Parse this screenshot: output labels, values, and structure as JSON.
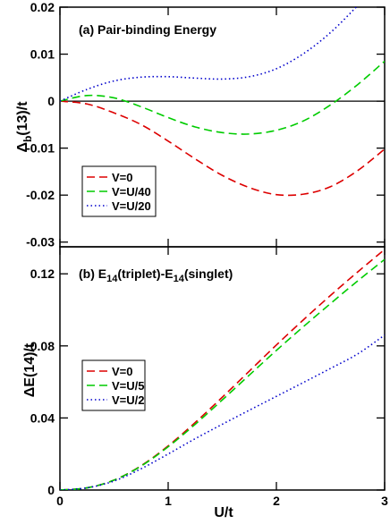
{
  "chart_data": [
    {
      "type": "line",
      "panel_title": "(a) Pair-binding Energy",
      "ylabel_main": "Δ",
      "ylabel_sub": "b",
      "ylabel_tail": "(13)/t",
      "xlabel": "",
      "xlim": [
        0,
        3
      ],
      "ylim": [
        -0.031,
        0.02
      ],
      "yticks": [
        0.02,
        0.01,
        0,
        -0.01,
        -0.02,
        -0.03
      ],
      "ytick_labels": [
        "0.02",
        "0.01",
        "0",
        "-0.01",
        "-0.02",
        "-0.03"
      ],
      "zero_line": true,
      "legend_position": "bottom-left",
      "series": [
        {
          "name": "V=0",
          "color": "#dd0000",
          "dash": "dashed",
          "x": [
            0,
            0.25,
            0.5,
            0.75,
            1.0,
            1.25,
            1.5,
            1.75,
            2.0,
            2.25,
            2.5,
            2.75,
            3.0
          ],
          "y": [
            0,
            -0.0006,
            -0.0025,
            -0.005,
            -0.0085,
            -0.0123,
            -0.0158,
            -0.0184,
            -0.0199,
            -0.0198,
            -0.0182,
            -0.0148,
            -0.0102
          ]
        },
        {
          "name": "V=U/40",
          "color": "#00cc00",
          "dash": "dashed",
          "x": [
            0,
            0.25,
            0.5,
            0.75,
            1.0,
            1.25,
            1.5,
            1.75,
            2.0,
            2.25,
            2.5,
            2.75,
            3.0
          ],
          "y": [
            0,
            0.0012,
            0.0007,
            -0.0012,
            -0.0035,
            -0.0055,
            -0.0067,
            -0.007,
            -0.0062,
            -0.0042,
            -0.0008,
            0.0035,
            0.0085
          ]
        },
        {
          "name": "V=U/20",
          "color": "#0000cc",
          "dash": "dotted",
          "x": [
            0,
            0.25,
            0.5,
            0.75,
            1.0,
            1.25,
            1.5,
            1.75,
            2.0,
            2.25,
            2.5,
            2.75,
            3.0
          ],
          "y": [
            0,
            0.0025,
            0.0043,
            0.0051,
            0.0052,
            0.0049,
            0.0047,
            0.0052,
            0.0069,
            0.0101,
            0.0146,
            0.0203,
            0.0262
          ]
        }
      ]
    },
    {
      "type": "line",
      "panel_title_prefix": "(b) E",
      "panel_title_sub1": "14",
      "panel_title_mid": "(triplet)-E",
      "panel_title_sub2": "14",
      "panel_title_tail": "(singlet)",
      "ylabel": "ΔE(14)/t",
      "xlabel": "U/t",
      "xlim": [
        0,
        3
      ],
      "ylim": [
        0,
        0.135
      ],
      "xticks": [
        0,
        1,
        2,
        3
      ],
      "xtick_labels": [
        "0",
        "1",
        "2",
        "3"
      ],
      "yticks": [
        0,
        0.04,
        0.08,
        0.12
      ],
      "ytick_labels": [
        "0",
        "0.04",
        "0.08",
        "0.12"
      ],
      "legend_position": "middle-left",
      "series": [
        {
          "name": "V=0",
          "color": "#dd0000",
          "dash": "dashed",
          "x": [
            0,
            0.25,
            0.5,
            0.75,
            1.0,
            1.25,
            1.5,
            1.75,
            2.0,
            2.25,
            2.5,
            2.75,
            3.0
          ],
          "y": [
            0,
            0.0012,
            0.0055,
            0.0135,
            0.0245,
            0.0375,
            0.0515,
            0.066,
            0.0805,
            0.0945,
            0.108,
            0.121,
            0.1335
          ]
        },
        {
          "name": "V=U/5",
          "color": "#00cc00",
          "dash": "dashed",
          "x": [
            0,
            0.25,
            0.5,
            0.75,
            1.0,
            1.25,
            1.5,
            1.75,
            2.0,
            2.25,
            2.5,
            2.75,
            3.0
          ],
          "y": [
            0,
            0.0012,
            0.0055,
            0.0133,
            0.024,
            0.0365,
            0.05,
            0.0638,
            0.0775,
            0.0907,
            0.1035,
            0.116,
            0.128
          ]
        },
        {
          "name": "V=U/2",
          "color": "#0000cc",
          "dash": "dotted",
          "x": [
            0,
            0.25,
            0.5,
            0.75,
            1.0,
            1.25,
            1.5,
            1.75,
            2.0,
            2.25,
            2.5,
            2.75,
            3.0
          ],
          "y": [
            0,
            0.0012,
            0.005,
            0.0118,
            0.02,
            0.0285,
            0.0365,
            0.0443,
            0.052,
            0.0597,
            0.0675,
            0.0755,
            0.086
          ]
        }
      ]
    }
  ]
}
